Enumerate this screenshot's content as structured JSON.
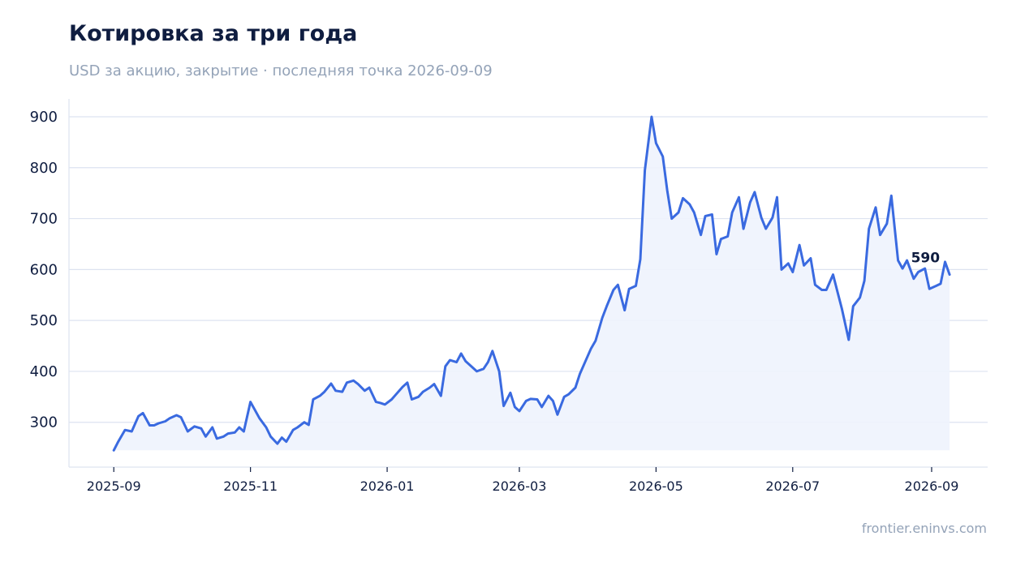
{
  "title": "Котировка за три года",
  "subtitle": "USD за акцию, закрытие · последняя точка 2026-09-09",
  "footer": "frontier.eninvs.com",
  "colors": {
    "line": "#3a6ae0",
    "fill": "#eef3fd",
    "grid": "#dde3f0",
    "axis": "#dde3f0",
    "text": "#0f1d40",
    "muted": "#94a3b8"
  },
  "chart_data": {
    "type": "area",
    "title": "Котировка за три года",
    "subtitle": "USD за акцию, закрытие · последняя точка 2026-09-09",
    "xlabel": "",
    "ylabel": "",
    "xlim": [
      "2025-08-12",
      "2026-09-26"
    ],
    "ylim": [
      212,
      935
    ],
    "yticks": [
      300,
      400,
      500,
      600,
      700,
      800,
      900
    ],
    "xticks": [
      "2025-09",
      "2025-11",
      "2026-01",
      "2026-03",
      "2026-05",
      "2026-07",
      "2026-09"
    ],
    "grid": "horizontal",
    "last_value_label": "590",
    "series": [
      {
        "x": [
          "2025-09-01",
          "2025-09-03",
          "2025-09-06",
          "2025-09-09",
          "2025-09-12",
          "2025-09-14",
          "2025-09-17",
          "2025-09-19",
          "2025-09-21",
          "2025-09-24",
          "2025-09-26",
          "2025-09-29",
          "2025-10-01",
          "2025-10-04",
          "2025-10-07",
          "2025-10-10",
          "2025-10-12",
          "2025-10-15",
          "2025-10-17",
          "2025-10-20",
          "2025-10-22",
          "2025-10-25",
          "2025-10-27",
          "2025-10-29",
          "2025-11-01",
          "2025-11-03",
          "2025-11-05",
          "2025-11-08",
          "2025-11-10",
          "2025-11-13",
          "2025-11-15",
          "2025-11-17",
          "2025-11-20",
          "2025-11-22",
          "2025-11-25",
          "2025-11-27",
          "2025-11-29",
          "2025-12-02",
          "2025-12-04",
          "2025-12-07",
          "2025-12-09",
          "2025-12-12",
          "2025-12-14",
          "2025-12-17",
          "2025-12-19",
          "2025-12-22",
          "2025-12-24",
          "2025-12-27",
          "2025-12-29",
          "2025-12-31",
          "2026-01-03",
          "2026-01-05",
          "2026-01-08",
          "2026-01-10",
          "2026-01-12",
          "2026-01-15",
          "2026-01-17",
          "2026-01-20",
          "2026-01-22",
          "2026-01-25",
          "2026-01-27",
          "2026-01-29",
          "2026-02-01",
          "2026-02-03",
          "2026-02-05",
          "2026-02-08",
          "2026-02-10",
          "2026-02-13",
          "2026-02-15",
          "2026-02-17",
          "2026-02-20",
          "2026-02-22",
          "2026-02-25",
          "2026-02-27",
          "2026-03-01",
          "2026-03-04",
          "2026-03-06",
          "2026-03-09",
          "2026-03-11",
          "2026-03-14",
          "2026-03-16",
          "2026-03-18",
          "2026-03-21",
          "2026-03-23",
          "2026-03-26",
          "2026-03-28",
          "2026-03-31",
          "2026-04-02",
          "2026-04-04",
          "2026-04-07",
          "2026-04-09",
          "2026-04-12",
          "2026-04-14",
          "2026-04-17",
          "2026-04-19",
          "2026-04-22",
          "2026-04-24",
          "2026-04-26",
          "2026-04-29",
          "2026-05-01",
          "2026-05-04",
          "2026-05-06",
          "2026-05-08",
          "2026-05-11",
          "2026-05-13",
          "2026-05-16",
          "2026-05-18",
          "2026-05-21",
          "2026-05-23",
          "2026-05-26",
          "2026-05-28",
          "2026-05-30",
          "2026-06-02",
          "2026-06-04",
          "2026-06-07",
          "2026-06-09",
          "2026-06-12",
          "2026-06-14",
          "2026-06-17",
          "2026-06-19",
          "2026-06-22",
          "2026-06-24",
          "2026-06-26",
          "2026-06-29",
          "2026-07-01",
          "2026-07-04",
          "2026-07-06",
          "2026-07-09",
          "2026-07-11",
          "2026-07-14",
          "2026-07-16",
          "2026-07-19",
          "2026-07-21",
          "2026-07-23",
          "2026-07-26",
          "2026-07-28",
          "2026-07-31",
          "2026-08-02",
          "2026-08-04",
          "2026-08-07",
          "2026-08-09",
          "2026-08-12",
          "2026-08-14",
          "2026-08-17",
          "2026-08-19",
          "2026-08-21",
          "2026-08-24",
          "2026-08-26",
          "2026-08-29",
          "2026-08-31",
          "2026-09-03",
          "2026-09-05",
          "2026-09-07",
          "2026-09-09"
        ],
        "values": [
          245,
          262,
          285,
          282,
          312,
          318,
          294,
          294,
          298,
          302,
          308,
          314,
          310,
          282,
          292,
          288,
          272,
          290,
          268,
          272,
          278,
          280,
          290,
          282,
          340,
          324,
          308,
          290,
          272,
          258,
          270,
          262,
          285,
          290,
          300,
          295,
          345,
          352,
          360,
          376,
          362,
          360,
          378,
          382,
          375,
          362,
          368,
          340,
          338,
          335,
          345,
          355,
          370,
          378,
          345,
          350,
          360,
          368,
          375,
          352,
          410,
          422,
          418,
          435,
          420,
          408,
          400,
          405,
          418,
          440,
          400,
          332,
          358,
          330,
          322,
          342,
          346,
          345,
          330,
          352,
          342,
          315,
          350,
          355,
          368,
          395,
          425,
          445,
          460,
          505,
          528,
          560,
          570,
          520,
          562,
          568,
          620,
          795,
          900,
          848,
          822,
          755,
          700,
          712,
          740,
          728,
          712,
          668,
          705,
          708,
          630,
          660,
          665,
          712,
          742,
          680,
          732,
          752,
          702,
          680,
          702,
          742,
          600,
          612,
          595,
          648,
          608,
          622,
          570,
          560,
          560,
          590,
          556,
          522,
          462,
          528,
          545,
          578,
          680,
          722,
          668,
          690,
          745,
          618,
          602,
          618,
          582,
          595,
          602,
          562,
          568,
          572,
          615,
          590
        ]
      }
    ]
  }
}
